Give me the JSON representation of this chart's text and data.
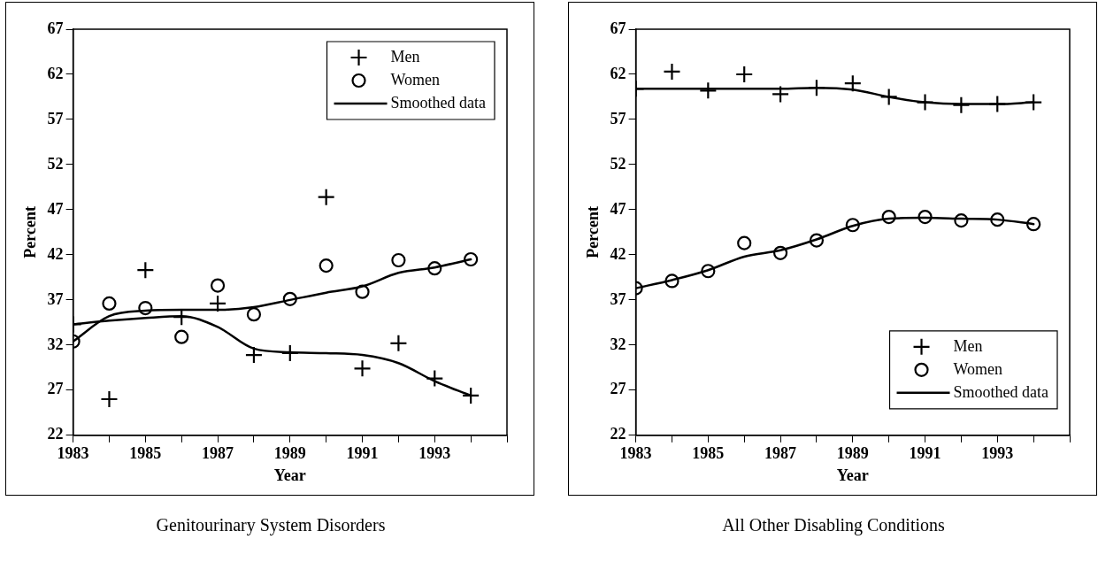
{
  "chart_data": [
    {
      "type": "scatter",
      "title": "Genitourinary System Disorders",
      "xlabel": "Year",
      "ylabel": "Percent",
      "xlim": [
        1983,
        1995
      ],
      "ylim": [
        22,
        67
      ],
      "xticks": [
        1983,
        {
          "value": 1984,
          "label": null
        },
        1985,
        {
          "value": 1986,
          "label": null
        },
        1987,
        {
          "value": 1988,
          "label": null
        },
        1989,
        {
          "value": 1990,
          "label": null
        },
        1991,
        {
          "value": 1992,
          "label": null
        },
        1993,
        {
          "value": 1994,
          "label": null
        },
        {
          "value": 1995,
          "label": null
        }
      ],
      "yticks": [
        22,
        27,
        32,
        37,
        42,
        47,
        52,
        57,
        62,
        67
      ],
      "grid": false,
      "legend": "top right",
      "x": [
        1983,
        1984,
        1985,
        1986,
        1987,
        1988,
        1989,
        1990,
        1991,
        1992,
        1993,
        1994
      ],
      "series": [
        {
          "name": "Men",
          "type": "scatter",
          "marker": "cross",
          "color": "#000000",
          "values": [
            34.3,
            26.0,
            40.3,
            35.1,
            36.6,
            30.9,
            31.1,
            48.4,
            29.4,
            32.2,
            28.3,
            26.4
          ]
        },
        {
          "name": "Women",
          "type": "scatter",
          "marker": "circle",
          "color": "#000000",
          "values": [
            32.4,
            36.6,
            36.1,
            32.9,
            38.6,
            35.4,
            37.1,
            40.8,
            37.9,
            41.4,
            40.5,
            41.5
          ]
        },
        {
          "name": "Smoothed data",
          "type": "line",
          "marker": "none",
          "color": "#000000",
          "values": [
            32.4,
            35.2,
            35.8,
            35.9,
            35.9,
            36.2,
            37.0,
            37.8,
            38.5,
            40.0,
            40.6,
            41.5
          ]
        },
        {
          "type": "line",
          "marker": "none",
          "color": "#000000",
          "values": [
            34.3,
            34.7,
            35.0,
            35.2,
            34.0,
            31.6,
            31.2,
            31.1,
            30.9,
            30.0,
            28.0,
            26.4
          ]
        }
      ]
    },
    {
      "type": "scatter",
      "title": "All Other Disabling Conditions",
      "xlabel": "Year",
      "ylabel": "Percent",
      "xlim": [
        1983,
        1995
      ],
      "ylim": [
        22,
        67
      ],
      "xticks": [
        1983,
        {
          "value": 1984,
          "label": null
        },
        1985,
        {
          "value": 1986,
          "label": null
        },
        1987,
        {
          "value": 1988,
          "label": null
        },
        1989,
        {
          "value": 1990,
          "label": null
        },
        1991,
        {
          "value": 1992,
          "label": null
        },
        1993,
        {
          "value": 1994,
          "label": null
        },
        {
          "value": 1995,
          "label": null
        }
      ],
      "yticks": [
        22,
        27,
        32,
        37,
        42,
        47,
        52,
        57,
        62,
        67
      ],
      "grid": false,
      "legend": "bottom right",
      "x": [
        1983,
        1984,
        1985,
        1986,
        1987,
        1988,
        1989,
        1990,
        1991,
        1992,
        1993,
        1994
      ],
      "series": [
        {
          "name": "Men",
          "type": "scatter",
          "marker": "cross",
          "color": "#000000",
          "values": [
            60.4,
            62.3,
            60.2,
            62.0,
            59.8,
            60.5,
            61.0,
            59.5,
            58.9,
            58.6,
            58.7,
            58.9
          ]
        },
        {
          "name": "Women",
          "type": "scatter",
          "marker": "circle",
          "color": "#000000",
          "values": [
            38.3,
            39.1,
            40.2,
            43.3,
            42.2,
            43.6,
            45.3,
            46.2,
            46.2,
            45.8,
            45.9,
            45.4
          ]
        },
        {
          "name": "Smoothed data",
          "type": "line",
          "marker": "none",
          "color": "#000000",
          "values": [
            60.4,
            60.4,
            60.4,
            60.4,
            60.4,
            60.5,
            60.3,
            59.5,
            58.9,
            58.7,
            58.7,
            58.9
          ]
        },
        {
          "type": "line",
          "marker": "none",
          "color": "#000000",
          "values": [
            38.3,
            39.2,
            40.3,
            41.8,
            42.5,
            43.7,
            45.2,
            46.0,
            46.1,
            46.0,
            45.9,
            45.4
          ]
        }
      ]
    }
  ]
}
